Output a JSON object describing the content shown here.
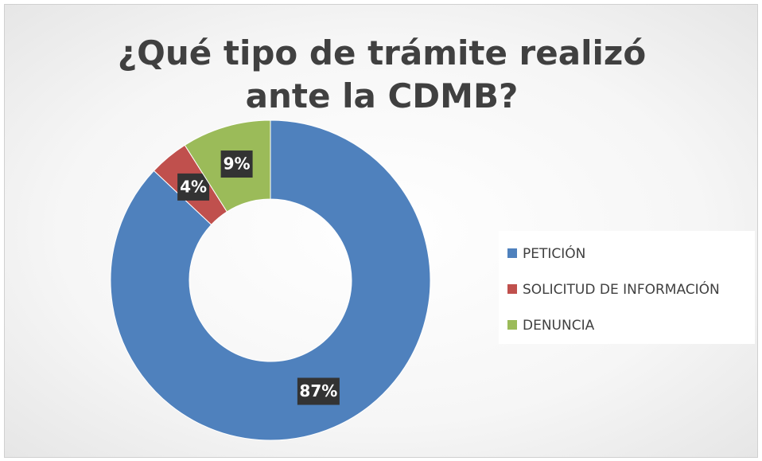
{
  "chart_data": {
    "type": "donut",
    "title": "¿Qué tipo de trámite realizó ante la CDMB?",
    "categories": [
      "PETICIÓN",
      "SOLICITUD DE INFORMACIÓN",
      "DENUNCIA"
    ],
    "values": [
      87,
      4,
      9
    ],
    "value_labels": [
      "87%",
      "4%",
      "9%"
    ],
    "colors": [
      "#4f81bd",
      "#c0504d",
      "#9bbb59"
    ],
    "legend": "right"
  }
}
